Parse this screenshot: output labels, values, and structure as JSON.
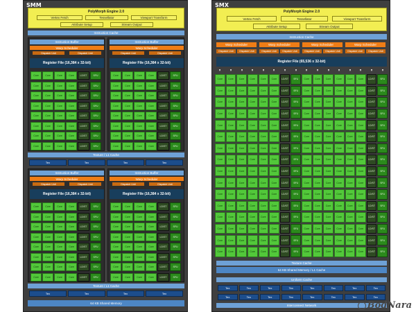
{
  "smm": {
    "title": "SMM",
    "polymorph": {
      "title": "PolyMorph Engine 2.0",
      "vertex_fetch": "Vertex Fetch",
      "tessellator": "Tessellator",
      "viewport_transform": "Viewport Transform",
      "attribute_setup": "Attribute Setup",
      "stream_output": "Stream Output"
    },
    "instruction_cache": "Instruction Cache",
    "quad": {
      "instruction_buffer": "Instruction Buffer",
      "warp_scheduler": "Warp Scheduler",
      "dispatch_unit": "Dispatch Unit",
      "register_file": "Register File (16,384 x 32-bit)",
      "row_cells": [
        "Core",
        "Core",
        "Core",
        "Core",
        "LD/ST",
        "SFU"
      ],
      "rows": 8
    },
    "texture_l1_cache": "Texture / L1 Cache",
    "tex_label": "Tex",
    "shared_memory": "64 KB Shared Memory"
  },
  "smx": {
    "title": "SMX",
    "polymorph": {
      "title": "PolyMorph Engine 2.0",
      "vertex_fetch": "Vertex Fetch",
      "tessellator": "Tessellator",
      "viewport_transform": "Viewport Transform",
      "attribute_setup": "Attribute Setup",
      "stream_output": "Stream Output"
    },
    "instruction_cache": "Instruction Cache",
    "warp_scheduler": "Warp Scheduler",
    "dispatch_unit": "Dispatch Unit",
    "register_file": "Register File (65,536 x 32-bit)",
    "row_cells": [
      "Core",
      "Core",
      "Core",
      "Core",
      "Core",
      "Core",
      "LD/ST",
      "SFU",
      "Core",
      "Core",
      "Core",
      "Core",
      "Core",
      "Core",
      "LD/ST",
      "SFU"
    ],
    "rows": 16,
    "texture_cache": "Texture Cache",
    "shared_memory": "64 KB Shared Memory / L1 Cache",
    "uniform_cache": "Uniform Cache",
    "tex_label": "Tex",
    "interconnect": "Interconnect Network"
  },
  "watermark": "BodNara",
  "colors": {
    "panel": "#3f3f3f",
    "polymorph": "#f2ee52",
    "cache": "#6ea1d6",
    "scheduler": "#ef7d16",
    "register_file": "#183e5c",
    "core": "#52c83a",
    "ldst": "#2e4a22",
    "sfu": "#2b8a1c",
    "tex": "#1c4d8c"
  }
}
